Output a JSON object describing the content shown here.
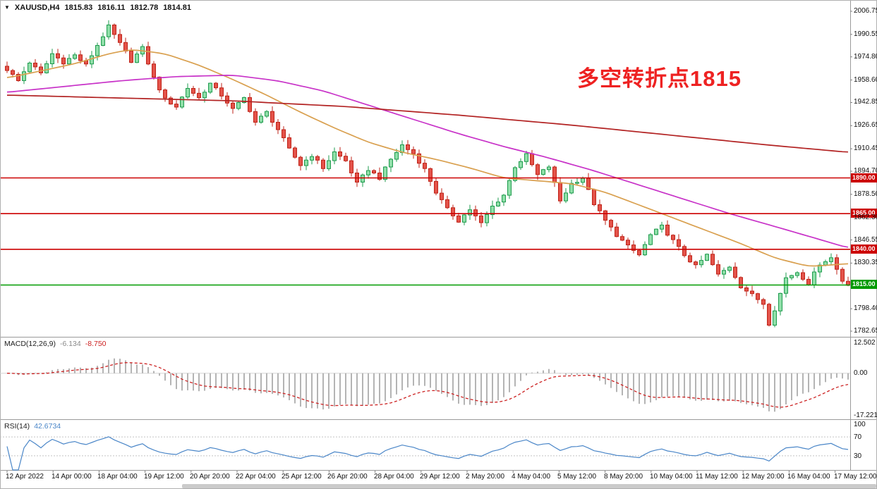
{
  "header": {
    "symbol_marker": "▼",
    "symbol": "XAUUSD,H4",
    "open": "1815.83",
    "high": "1816.11",
    "low": "1812.78",
    "close": "1814.81"
  },
  "annotation": {
    "text": "多空转折点1815",
    "color": "#ee2222"
  },
  "levels": [
    {
      "label": "1890.00",
      "price": 1890.0,
      "color": "#cc0000"
    },
    {
      "label": "1865.00",
      "price": 1865.0,
      "color": "#cc0000"
    },
    {
      "label": "1840.00",
      "price": 1840.0,
      "color": "#cc0000"
    },
    {
      "label": "1815.00",
      "price": 1815.0,
      "color": "#009a00"
    }
  ],
  "price_axis": {
    "ticks": [
      "2006.75",
      "1990.55",
      "1974.80",
      "1958.60",
      "1942.85",
      "1926.65",
      "1910.45",
      "1894.70",
      "1878.50",
      "1862.30",
      "1846.55",
      "1830.35",
      "1798.40",
      "1782.65"
    ]
  },
  "time_axis": {
    "labels": [
      "12 Apr 2022",
      "14 Apr 00:00",
      "18 Apr 04:00",
      "19 Apr 12:00",
      "20 Apr 20:00",
      "22 Apr 04:00",
      "25 Apr 12:00",
      "26 Apr 20:00",
      "28 Apr 04:00",
      "29 Apr 12:00",
      "2 May 20:00",
      "4 May 04:00",
      "5 May 12:00",
      "8 May 20:00",
      "10 May 04:00",
      "11 May 12:00",
      "12 May 20:00",
      "16 May 04:00",
      "17 May 12:00"
    ]
  },
  "macd_panel": {
    "label": "MACD(12,26,9)",
    "value_main": "-6.134",
    "value_signal": "-8.750",
    "axis_labels": [
      "12.502",
      "0.00",
      "-17.221"
    ]
  },
  "rsi_panel": {
    "label": "RSI(14)",
    "value": "42.6734",
    "axis_labels": [
      "100",
      "70",
      "30"
    ]
  },
  "chart_data": {
    "type": "candlestick",
    "symbol": "XAUUSD",
    "timeframe": "H4",
    "title": "XAUUSD H4 with MACD(12,26,9) and RSI(14)",
    "bars": 150,
    "price_axis_top": 2006.75,
    "price_axis_bottom": 1782.65,
    "last_close": 1814.81,
    "horizontal_levels": [
      1890.0,
      1865.0,
      1840.0,
      1815.0
    ],
    "close_waypoints": [
      [
        0,
        1966
      ],
      [
        2,
        1958
      ],
      [
        4,
        1971
      ],
      [
        6,
        1963
      ],
      [
        8,
        1977
      ],
      [
        10,
        1971
      ],
      [
        12,
        1976
      ],
      [
        14,
        1969
      ],
      [
        16,
        1983
      ],
      [
        18,
        1996
      ],
      [
        20,
        1984
      ],
      [
        22,
        1972
      ],
      [
        24,
        1981
      ],
      [
        26,
        1960
      ],
      [
        28,
        1945
      ],
      [
        30,
        1940
      ],
      [
        32,
        1953
      ],
      [
        34,
        1946
      ],
      [
        36,
        1956
      ],
      [
        38,
        1948
      ],
      [
        40,
        1938
      ],
      [
        42,
        1946
      ],
      [
        44,
        1929
      ],
      [
        46,
        1936
      ],
      [
        48,
        1924
      ],
      [
        50,
        1910
      ],
      [
        52,
        1899
      ],
      [
        54,
        1906
      ],
      [
        56,
        1897
      ],
      [
        58,
        1908
      ],
      [
        60,
        1902
      ],
      [
        62,
        1886
      ],
      [
        64,
        1896
      ],
      [
        66,
        1890
      ],
      [
        68,
        1903
      ],
      [
        70,
        1913
      ],
      [
        72,
        1907
      ],
      [
        74,
        1896
      ],
      [
        76,
        1880
      ],
      [
        78,
        1868
      ],
      [
        80,
        1860
      ],
      [
        82,
        1868
      ],
      [
        84,
        1858
      ],
      [
        86,
        1870
      ],
      [
        88,
        1878
      ],
      [
        90,
        1898
      ],
      [
        92,
        1906
      ],
      [
        94,
        1892
      ],
      [
        96,
        1898
      ],
      [
        98,
        1874
      ],
      [
        100,
        1886
      ],
      [
        102,
        1890
      ],
      [
        104,
        1872
      ],
      [
        106,
        1860
      ],
      [
        108,
        1850
      ],
      [
        110,
        1842
      ],
      [
        112,
        1836
      ],
      [
        114,
        1850
      ],
      [
        116,
        1856
      ],
      [
        118,
        1846
      ],
      [
        120,
        1836
      ],
      [
        122,
        1828
      ],
      [
        124,
        1836
      ],
      [
        126,
        1822
      ],
      [
        128,
        1828
      ],
      [
        130,
        1814
      ],
      [
        132,
        1808
      ],
      [
        134,
        1802
      ],
      [
        135,
        1788
      ],
      [
        136,
        1798
      ],
      [
        138,
        1820
      ],
      [
        140,
        1824
      ],
      [
        142,
        1816
      ],
      [
        144,
        1830
      ],
      [
        146,
        1834
      ],
      [
        148,
        1818
      ],
      [
        149,
        1814.81
      ]
    ],
    "wick_overrides": {
      "18": {
        "high": 2000.5
      },
      "135": {
        "low": 1786.0
      }
    },
    "ma_lines": [
      {
        "name": "ma-fast-orange",
        "color": "#d9a04f",
        "points": [
          [
            0,
            1960
          ],
          [
            6,
            1965
          ],
          [
            12,
            1970
          ],
          [
            18,
            1977
          ],
          [
            22,
            1980
          ],
          [
            28,
            1977
          ],
          [
            34,
            1969
          ],
          [
            40,
            1959
          ],
          [
            46,
            1948
          ],
          [
            52,
            1936
          ],
          [
            58,
            1925
          ],
          [
            64,
            1915
          ],
          [
            70,
            1908
          ],
          [
            76,
            1903
          ],
          [
            82,
            1897
          ],
          [
            88,
            1890
          ],
          [
            94,
            1888
          ],
          [
            100,
            1886
          ],
          [
            106,
            1880
          ],
          [
            112,
            1871
          ],
          [
            118,
            1862
          ],
          [
            124,
            1853
          ],
          [
            130,
            1844
          ],
          [
            136,
            1834
          ],
          [
            142,
            1828
          ],
          [
            146,
            1829
          ],
          [
            149,
            1830
          ]
        ]
      },
      {
        "name": "ma-mid-magenta",
        "color": "#c832c8",
        "points": [
          [
            0,
            1950
          ],
          [
            10,
            1954
          ],
          [
            20,
            1958
          ],
          [
            30,
            1961
          ],
          [
            40,
            1962
          ],
          [
            48,
            1958
          ],
          [
            56,
            1951
          ],
          [
            64,
            1941
          ],
          [
            72,
            1931
          ],
          [
            80,
            1921
          ],
          [
            88,
            1912
          ],
          [
            96,
            1904
          ],
          [
            104,
            1895
          ],
          [
            112,
            1885
          ],
          [
            120,
            1875
          ],
          [
            128,
            1865
          ],
          [
            136,
            1856
          ],
          [
            143,
            1848
          ],
          [
            149,
            1841
          ]
        ]
      },
      {
        "name": "ma-slow-red",
        "color": "#b22222",
        "points": [
          [
            0,
            1948
          ],
          [
            20,
            1946
          ],
          [
            40,
            1944
          ],
          [
            60,
            1940
          ],
          [
            80,
            1934
          ],
          [
            100,
            1927
          ],
          [
            120,
            1919
          ],
          [
            135,
            1913
          ],
          [
            149,
            1908
          ]
        ]
      }
    ],
    "colors": {
      "up_fill": "#90dfa9",
      "up_stroke": "#1e9b4d",
      "down_fill": "#e4534a",
      "down_stroke": "#bf2318",
      "macd_hist": "#b4b4b4",
      "macd_signal": "#cc2222",
      "rsi_line": "#4a86c8",
      "level_red": "#cc0000",
      "level_green": "#009a00"
    },
    "macd": {
      "fast": 12,
      "slow": 26,
      "signal_period": 9,
      "scale_max": 12.502,
      "scale_min": -17.221,
      "current_main": -6.134,
      "current_signal": -8.75
    },
    "rsi": {
      "period": 14,
      "levels": [
        70,
        30
      ],
      "current": 42.6734
    }
  }
}
